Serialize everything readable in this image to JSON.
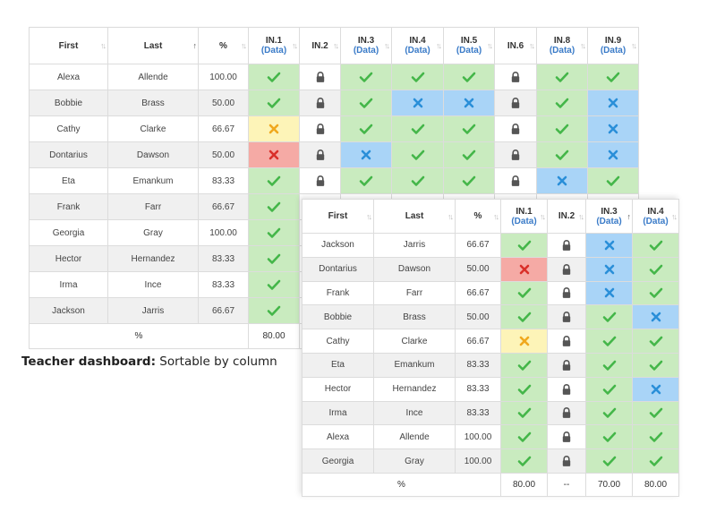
{
  "caption": {
    "title": "Teacher dashboard:",
    "text": "Sortable by column"
  },
  "colors": {
    "check": "#44b649",
    "x_blue": "#2a8fd8",
    "partial": "#f0a81e",
    "fail": "#d9302a",
    "lock": "#555555",
    "header_link": "#3a7bc8"
  },
  "table1": {
    "headers": [
      {
        "label": "First",
        "sub": "",
        "sort": "both"
      },
      {
        "label": "Last",
        "sub": "",
        "sort": "up"
      },
      {
        "label": "%",
        "sub": "",
        "sort": "both"
      },
      {
        "label": "IN.1",
        "sub": "(Data)",
        "sort": "both"
      },
      {
        "label": "IN.2",
        "sub": "",
        "sort": "both"
      },
      {
        "label": "IN.3",
        "sub": "(Data)",
        "sort": "both"
      },
      {
        "label": "IN.4",
        "sub": "(Data)",
        "sort": "both"
      },
      {
        "label": "IN.5",
        "sub": "(Data)",
        "sort": "both"
      },
      {
        "label": "IN.6",
        "sub": "",
        "sort": "both"
      },
      {
        "label": "IN.8",
        "sub": "(Data)",
        "sort": "both"
      },
      {
        "label": "IN.9",
        "sub": "(Data)",
        "sort": "both"
      }
    ],
    "rows": [
      {
        "first": "Alexa",
        "last": "Allende",
        "pct": "100.00",
        "cells": [
          "check",
          "lock",
          "check",
          "check",
          "check",
          "lock",
          "check",
          "check"
        ]
      },
      {
        "first": "Bobbie",
        "last": "Brass",
        "pct": "50.00",
        "cells": [
          "check",
          "lock",
          "check",
          "x",
          "x",
          "lock",
          "check",
          "x"
        ]
      },
      {
        "first": "Cathy",
        "last": "Clarke",
        "pct": "66.67",
        "cells": [
          "partial",
          "lock",
          "check",
          "check",
          "check",
          "lock",
          "check",
          "x"
        ]
      },
      {
        "first": "Dontarius",
        "last": "Dawson",
        "pct": "50.00",
        "cells": [
          "fail",
          "lock",
          "x",
          "check",
          "check",
          "lock",
          "check",
          "x"
        ]
      },
      {
        "first": "Eta",
        "last": "Emankum",
        "pct": "83.33",
        "cells": [
          "check",
          "lock",
          "check",
          "check",
          "check",
          "lock",
          "x",
          "check"
        ]
      },
      {
        "first": "Frank",
        "last": "Farr",
        "pct": "66.67",
        "cells": [
          "check"
        ]
      },
      {
        "first": "Georgia",
        "last": "Gray",
        "pct": "100.00",
        "cells": [
          "check"
        ]
      },
      {
        "first": "Hector",
        "last": "Hernandez",
        "pct": "83.33",
        "cells": [
          "check"
        ]
      },
      {
        "first": "Irma",
        "last": "Ince",
        "pct": "83.33",
        "cells": [
          "check"
        ]
      },
      {
        "first": "Jackson",
        "last": "Jarris",
        "pct": "66.67",
        "cells": [
          "check"
        ]
      }
    ],
    "footer": {
      "label": "%",
      "values": [
        "80.00"
      ]
    }
  },
  "table2": {
    "headers": [
      {
        "label": "First",
        "sub": "",
        "sort": "both"
      },
      {
        "label": "Last",
        "sub": "",
        "sort": "both"
      },
      {
        "label": "%",
        "sub": "",
        "sort": "both"
      },
      {
        "label": "IN.1",
        "sub": "(Data)",
        "sort": "both"
      },
      {
        "label": "IN.2",
        "sub": "",
        "sort": "both"
      },
      {
        "label": "IN.3",
        "sub": "(Data)",
        "sort": "up"
      },
      {
        "label": "IN.4",
        "sub": "(Data)",
        "sort": "both"
      }
    ],
    "rows": [
      {
        "first": "Jackson",
        "last": "Jarris",
        "pct": "66.67",
        "cells": [
          "check",
          "lock",
          "x",
          "check"
        ]
      },
      {
        "first": "Dontarius",
        "last": "Dawson",
        "pct": "50.00",
        "cells": [
          "fail",
          "lock",
          "x",
          "check"
        ]
      },
      {
        "first": "Frank",
        "last": "Farr",
        "pct": "66.67",
        "cells": [
          "check",
          "lock",
          "x",
          "check"
        ]
      },
      {
        "first": "Bobbie",
        "last": "Brass",
        "pct": "50.00",
        "cells": [
          "check",
          "lock",
          "check",
          "x"
        ]
      },
      {
        "first": "Cathy",
        "last": "Clarke",
        "pct": "66.67",
        "cells": [
          "partial",
          "lock",
          "check",
          "check"
        ]
      },
      {
        "first": "Eta",
        "last": "Emankum",
        "pct": "83.33",
        "cells": [
          "check",
          "lock",
          "check",
          "check"
        ]
      },
      {
        "first": "Hector",
        "last": "Hernandez",
        "pct": "83.33",
        "cells": [
          "check",
          "lock",
          "check",
          "x"
        ]
      },
      {
        "first": "Irma",
        "last": "Ince",
        "pct": "83.33",
        "cells": [
          "check",
          "lock",
          "check",
          "check"
        ]
      },
      {
        "first": "Alexa",
        "last": "Allende",
        "pct": "100.00",
        "cells": [
          "check",
          "lock",
          "check",
          "check"
        ]
      },
      {
        "first": "Georgia",
        "last": "Gray",
        "pct": "100.00",
        "cells": [
          "check",
          "lock",
          "check",
          "check"
        ]
      }
    ],
    "footer": {
      "label": "%",
      "values": [
        "80.00",
        "--",
        "70.00",
        "80.00"
      ]
    }
  }
}
